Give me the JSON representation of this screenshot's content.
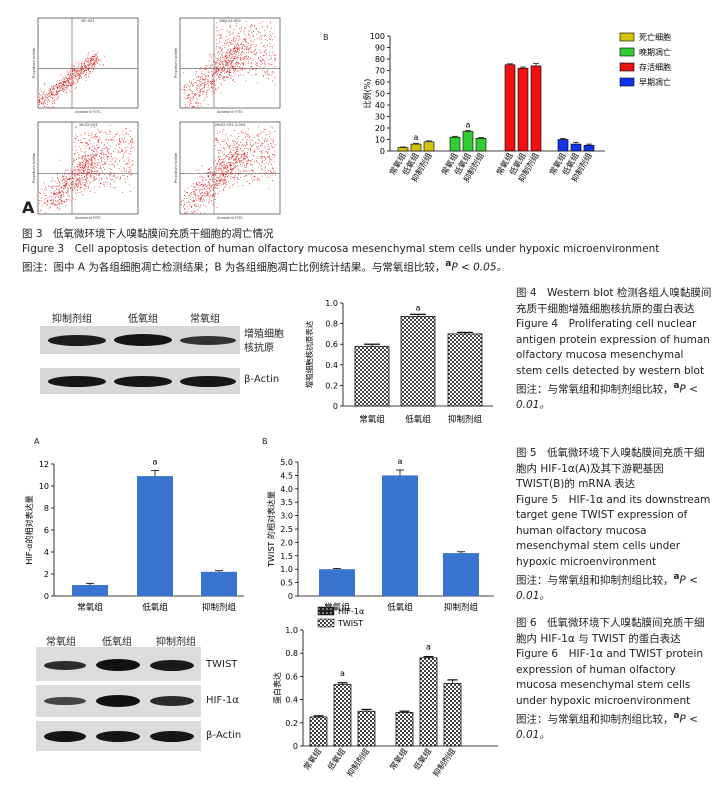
{
  "fig3": {
    "panel_label_A": "A",
    "panel_label_B": "B",
    "flow_panels": [
      {
        "title": "NC:001",
        "xlabel": "AnnexinV FITC",
        "ylabel": "Propidium Iodide"
      },
      {
        "title": "2NN:02:002",
        "xlabel": "AnnexinV FITC",
        "ylabel": "Propidium Iodide"
      },
      {
        "title": "3N:02:003",
        "xlabel": "AnnexinV FITC",
        "ylabel": "Propidium Iodide"
      },
      {
        "title": "2N:02:Y02-1:004",
        "xlabel": "AnnexinV FITC",
        "ylabel": "Propidium Iodide"
      }
    ],
    "caption_cn": "图 3　低氧微环境下人嗅黏膜间充质干细胞的凋亡情况",
    "caption_en": "Figure 3　Cell apoptosis detection of human olfactory mucosa mesenchymal stem cells under hypoxic microenvironment",
    "note_prefix": "图注：图中 A 为各组细胞凋亡检测结果；B 为各组细胞凋亡比例统计结果。与常氧组比较，",
    "note_sup": "a",
    "note_p": "P < 0.05。"
  },
  "fig4": {
    "blot_groups": [
      "抑制剂组",
      "低氧组",
      "常氧组"
    ],
    "blot_row1_label": "增殖细胞核抗原",
    "blot_row2_label": "β-Actin",
    "side_title_cn": "图 4　Western blot 检测各组人嗅黏膜间充质干细胞增殖细胞核抗原的蛋白表达",
    "side_title_en": "Figure 4　Proliferating cell nuclear antigen protein expression of human olfactory mucosa mesenchymal stem cells detected by western blot",
    "side_note": "图注：与常氧组和抑制剂组比较，",
    "side_sup": "a",
    "side_p": "P < 0.01。"
  },
  "fig5": {
    "panel_label_A": "A",
    "panel_label_B": "B",
    "side_title_cn": "图 5　低氧微环境下人嗅黏膜间充质干细胞内 HIF-1α(A)及其下游靶基因 TWIST(B)的 mRNA 表达",
    "side_title_en": "Figure 5　HIF-1α and its downstream target gene TWIST expression of human olfactory mucosa mesenchymal stem cells under hypoxic microenvironment",
    "side_note": "图注：与常氧组和抑制剂组比较，",
    "side_sup": "a",
    "side_p": "P < 0.01。"
  },
  "fig6": {
    "blot_groups": [
      "常氧组",
      "低氧组",
      "抑制剂组"
    ],
    "blot_row_labels": [
      "TWIST",
      "HIF-1α",
      "β-Actin"
    ],
    "side_title_cn": "图 6　低氧微环境下人嗅黏膜间充质干细胞内 HIF-1α 与 TWIST 的蛋白表达",
    "side_title_en": "Figure 6　HIF-1α and TWIST protein expression of human olfactory mucosa mesenchymal stem cells under hypoxic microenvironment",
    "side_note": "图注：与常氧组和抑制剂组比较，",
    "side_sup": "a",
    "side_p": "P < 0.01。"
  },
  "chart_data": [
    {
      "id": "fig3B",
      "type": "bar",
      "ylabel": "比例(%)",
      "ylim": [
        0,
        100
      ],
      "yticks": [
        0,
        10,
        20,
        30,
        40,
        50,
        60,
        70,
        80,
        90,
        100
      ],
      "legend_position": "top-right",
      "categories": [
        "常氧组",
        "低氧组",
        "抑制剂组"
      ],
      "series": [
        {
          "name": "死亡细胞",
          "color": "#d4c200",
          "values": [
            3,
            6,
            8
          ],
          "errors": [
            0.5,
            0.8,
            0.8
          ],
          "sig": [
            "",
            "a",
            ""
          ]
        },
        {
          "name": "晚期凋亡",
          "color": "#33cc33",
          "values": [
            12,
            17,
            11
          ],
          "errors": [
            0.8,
            1.0,
            0.8
          ],
          "sig": [
            "",
            "a",
            ""
          ]
        },
        {
          "name": "存活细胞",
          "color": "#ee1111",
          "values": [
            75,
            72,
            74
          ],
          "errors": [
            0.8,
            1.0,
            2.0
          ],
          "sig": [
            "",
            "",
            ""
          ]
        },
        {
          "name": "早期凋亡",
          "color": "#1133ee",
          "values": [
            10,
            6,
            5
          ],
          "errors": [
            1.0,
            1.5,
            1.0
          ],
          "sig": [
            "",
            "",
            ""
          ]
        }
      ]
    },
    {
      "id": "fig4",
      "type": "bar",
      "ylabel": "增殖细胞核抗原表达",
      "ylim": [
        0,
        1.0
      ],
      "yticks": [
        "0",
        "0.2",
        "0.4",
        "0.6",
        "0.8",
        "1.0"
      ],
      "categories": [
        "常氧组",
        "低氧组",
        "抑制剂组"
      ],
      "values": [
        0.58,
        0.87,
        0.7
      ],
      "errors": [
        0.02,
        0.02,
        0.015
      ],
      "sig": [
        "",
        "a",
        ""
      ]
    },
    {
      "id": "fig5A",
      "type": "bar",
      "ylabel": "HIF-α的相对表达量",
      "ylim": [
        0,
        12
      ],
      "yticks": [
        "0",
        "2",
        "4",
        "6",
        "8",
        "10",
        "12"
      ],
      "categories": [
        "常氧组",
        "低氧组",
        "抑制剂组"
      ],
      "values": [
        1.0,
        10.9,
        2.2
      ],
      "errors": [
        0.15,
        0.5,
        0.1
      ],
      "sig": [
        "",
        "a",
        ""
      ]
    },
    {
      "id": "fig5B",
      "type": "bar",
      "ylabel": "TWIST 的相对表达量",
      "ylim": [
        0,
        5.0
      ],
      "yticks": [
        "0",
        "0.5",
        "1.0",
        "1.5",
        "2.0",
        "2.5",
        "3.0",
        "3.5",
        "4.0",
        "4.5",
        "5.0"
      ],
      "categories": [
        "常氧组",
        "低氧组",
        "抑制剂组"
      ],
      "values": [
        1.0,
        4.5,
        1.6
      ],
      "errors": [
        0.03,
        0.2,
        0.05
      ],
      "sig": [
        "",
        "a",
        ""
      ]
    },
    {
      "id": "fig6",
      "type": "bar",
      "ylabel": "蛋白表达",
      "ylim": [
        0,
        1.0
      ],
      "yticks": [
        "0",
        "0.2",
        "0.4",
        "0.6",
        "0.8",
        "1.0"
      ],
      "legend_position": "top-left",
      "groups": [
        "HIF-1α",
        "TWIST"
      ],
      "categories": [
        "常氧组",
        "低氧组",
        "抑制剂组"
      ],
      "series": [
        {
          "name": "HIF-1α",
          "values": [
            0.25,
            0.53,
            0.3
          ],
          "errors": [
            0.01,
            0.015,
            0.015
          ],
          "sig": [
            "",
            "a",
            ""
          ]
        },
        {
          "name": "TWIST",
          "values": [
            0.29,
            0.76,
            0.54
          ],
          "errors": [
            0.01,
            0.01,
            0.03
          ],
          "sig": [
            "",
            "a",
            ""
          ]
        }
      ]
    }
  ]
}
